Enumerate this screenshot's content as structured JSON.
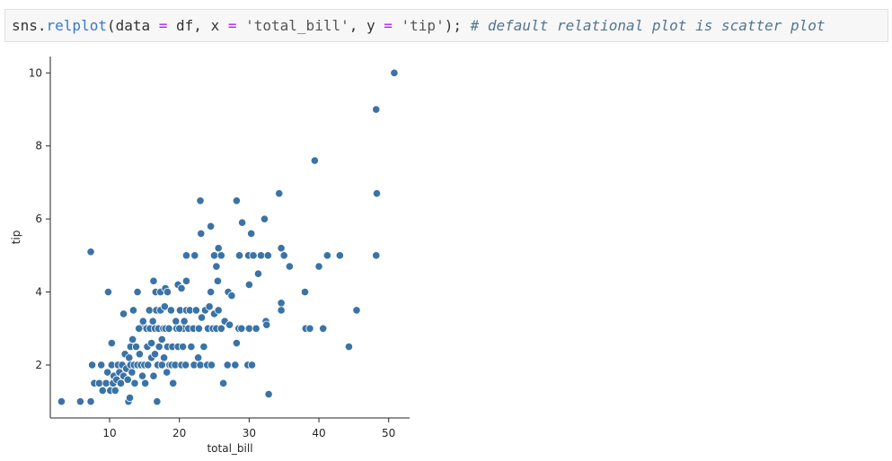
{
  "code_cell": {
    "code": "sns.relplot(data = df, x = 'total_bill', y = 'tip'); # default relational plot is scatter plot",
    "tokens": [
      {
        "text": "sns.",
        "cls": "tk-plain"
      },
      {
        "text": "relplot",
        "cls": "tk-fn"
      },
      {
        "text": "(data ",
        "cls": "tk-plain"
      },
      {
        "text": "=",
        "cls": "tk-op"
      },
      {
        "text": " df, x ",
        "cls": "tk-plain"
      },
      {
        "text": "=",
        "cls": "tk-op"
      },
      {
        "text": " ",
        "cls": "tk-plain"
      },
      {
        "text": "'total_bill'",
        "cls": "tk-str"
      },
      {
        "text": ", y ",
        "cls": "tk-plain"
      },
      {
        "text": "=",
        "cls": "tk-op"
      },
      {
        "text": " ",
        "cls": "tk-plain"
      },
      {
        "text": "'tip'",
        "cls": "tk-str"
      },
      {
        "text": "); ",
        "cls": "tk-plain"
      },
      {
        "text": "# default relational plot is scatter plot",
        "cls": "tk-cm"
      }
    ]
  },
  "chart_data": {
    "type": "scatter",
    "title": "",
    "xlabel": "total_bill",
    "ylabel": "tip",
    "xlim": [
      1.5,
      53
    ],
    "ylim": [
      0.55,
      10.45
    ],
    "xticks": [
      10,
      20,
      30,
      40,
      50
    ],
    "yticks": [
      2,
      4,
      6,
      8,
      10
    ],
    "grid": false,
    "colors": {
      "marker": "#3a73a7",
      "marker_edge": "#ffffff",
      "axis": "#262626"
    },
    "points": [
      [
        3.1,
        1.0
      ],
      [
        5.8,
        1.0
      ],
      [
        7.3,
        1.0
      ],
      [
        16.8,
        1.0
      ],
      [
        12.7,
        1.0
      ],
      [
        12.9,
        1.1
      ],
      [
        7.3,
        5.1
      ],
      [
        9.8,
        4.0
      ],
      [
        10.3,
        2.6
      ],
      [
        12.0,
        3.4
      ],
      [
        13.4,
        3.5
      ],
      [
        14.0,
        4.0
      ],
      [
        14.8,
        3.1
      ],
      [
        16.3,
        4.3
      ],
      [
        16.6,
        4.0
      ],
      [
        17.3,
        4.0
      ],
      [
        18.0,
        4.1
      ],
      [
        18.3,
        4.0
      ],
      [
        19.5,
        3.2
      ],
      [
        19.8,
        4.2
      ],
      [
        20.3,
        4.1
      ],
      [
        20.6,
        3.0
      ],
      [
        21.0,
        4.3
      ],
      [
        21.0,
        5.0
      ],
      [
        22.2,
        5.0
      ],
      [
        23.0,
        6.5
      ],
      [
        23.1,
        5.6
      ],
      [
        24.5,
        5.8
      ],
      [
        25.3,
        4.7
      ],
      [
        25.0,
        5.0
      ],
      [
        25.6,
        5.2
      ],
      [
        26.0,
        5.0
      ],
      [
        24.5,
        4.0
      ],
      [
        25.5,
        4.3
      ],
      [
        26.5,
        3.2
      ],
      [
        27.0,
        4.0
      ],
      [
        28.2,
        6.5
      ],
      [
        28.6,
        5.0
      ],
      [
        29.0,
        5.9
      ],
      [
        29.9,
        5.0
      ],
      [
        30.3,
        5.6
      ],
      [
        30.6,
        5.0
      ],
      [
        30.0,
        4.2
      ],
      [
        31.3,
        4.5
      ],
      [
        31.7,
        5.0
      ],
      [
        32.2,
        6.0
      ],
      [
        32.7,
        5.0
      ],
      [
        32.4,
        3.2
      ],
      [
        32.8,
        1.2
      ],
      [
        34.3,
        6.7
      ],
      [
        34.6,
        5.2
      ],
      [
        35.0,
        5.0
      ],
      [
        35.8,
        4.7
      ],
      [
        34.6,
        3.7
      ],
      [
        34.6,
        3.5
      ],
      [
        38.0,
        4.0
      ],
      [
        38.1,
        3.0
      ],
      [
        38.7,
        3.0
      ],
      [
        39.4,
        7.6
      ],
      [
        40.0,
        4.7
      ],
      [
        40.6,
        3.0
      ],
      [
        41.2,
        5.0
      ],
      [
        43.0,
        5.0
      ],
      [
        44.3,
        2.5
      ],
      [
        45.4,
        3.5
      ],
      [
        48.2,
        9.0
      ],
      [
        48.3,
        6.7
      ],
      [
        48.2,
        5.0
      ],
      [
        50.8,
        10.0
      ],
      [
        7.5,
        2.0
      ],
      [
        7.8,
        1.5
      ],
      [
        8.5,
        1.5
      ],
      [
        8.8,
        2.0
      ],
      [
        9.0,
        1.3
      ],
      [
        9.5,
        1.5
      ],
      [
        9.7,
        1.8
      ],
      [
        10.1,
        1.3
      ],
      [
        10.3,
        2.0
      ],
      [
        10.5,
        1.5
      ],
      [
        10.6,
        1.7
      ],
      [
        10.8,
        1.3
      ],
      [
        11.0,
        1.6
      ],
      [
        11.2,
        2.0
      ],
      [
        11.4,
        1.8
      ],
      [
        11.6,
        1.5
      ],
      [
        11.8,
        2.0
      ],
      [
        12.0,
        1.7
      ],
      [
        12.2,
        2.3
      ],
      [
        12.4,
        1.9
      ],
      [
        12.6,
        1.6
      ],
      [
        12.8,
        2.2
      ],
      [
        13.0,
        2.5
      ],
      [
        13.0,
        2.0
      ],
      [
        13.2,
        1.8
      ],
      [
        13.3,
        2.7
      ],
      [
        13.5,
        2.0
      ],
      [
        13.6,
        1.5
      ],
      [
        13.8,
        2.5
      ],
      [
        14.0,
        2.0
      ],
      [
        14.2,
        3.0
      ],
      [
        14.3,
        2.3
      ],
      [
        14.5,
        2.0
      ],
      [
        14.7,
        1.7
      ],
      [
        14.8,
        3.2
      ],
      [
        15.0,
        2.0
      ],
      [
        15.1,
        1.5
      ],
      [
        15.3,
        3.0
      ],
      [
        15.4,
        2.5
      ],
      [
        15.5,
        2.0
      ],
      [
        15.7,
        3.5
      ],
      [
        15.8,
        3.0
      ],
      [
        16.0,
        2.2
      ],
      [
        16.0,
        2.6
      ],
      [
        16.2,
        3.2
      ],
      [
        16.3,
        1.7
      ],
      [
        16.5,
        2.3
      ],
      [
        16.5,
        3.0
      ],
      [
        16.7,
        3.5
      ],
      [
        16.9,
        2.0
      ],
      [
        17.0,
        3.0
      ],
      [
        17.1,
        2.5
      ],
      [
        17.3,
        3.5
      ],
      [
        17.5,
        2.0
      ],
      [
        17.5,
        2.7
      ],
      [
        17.7,
        3.0
      ],
      [
        17.8,
        2.2
      ],
      [
        17.9,
        3.6
      ],
      [
        18.0,
        3.0
      ],
      [
        18.2,
        1.8
      ],
      [
        18.3,
        2.5
      ],
      [
        18.5,
        3.0
      ],
      [
        18.6,
        2.0
      ],
      [
        18.8,
        3.5
      ],
      [
        18.9,
        2.0
      ],
      [
        19.0,
        2.5
      ],
      [
        19.1,
        1.5
      ],
      [
        19.4,
        2.0
      ],
      [
        19.6,
        3.0
      ],
      [
        19.8,
        2.5
      ],
      [
        20.0,
        3.0
      ],
      [
        20.1,
        3.5
      ],
      [
        20.3,
        2.0
      ],
      [
        20.5,
        2.5
      ],
      [
        20.7,
        3.2
      ],
      [
        20.9,
        2.0
      ],
      [
        21.0,
        3.5
      ],
      [
        21.3,
        3.0
      ],
      [
        21.5,
        3.5
      ],
      [
        21.7,
        2.5
      ],
      [
        22.0,
        3.0
      ],
      [
        22.1,
        2.0
      ],
      [
        22.4,
        3.5
      ],
      [
        22.7,
        2.2
      ],
      [
        22.8,
        3.0
      ],
      [
        23.0,
        2.0
      ],
      [
        23.2,
        3.3
      ],
      [
        23.5,
        2.5
      ],
      [
        23.7,
        3.5
      ],
      [
        24.0,
        2.0
      ],
      [
        24.1,
        3.0
      ],
      [
        24.3,
        3.6
      ],
      [
        24.6,
        2.0
      ],
      [
        24.8,
        3.0
      ],
      [
        25.0,
        3.4
      ],
      [
        25.3,
        3.0
      ],
      [
        25.6,
        3.5
      ],
      [
        26.0,
        3.0
      ],
      [
        26.3,
        1.5
      ],
      [
        26.9,
        2.0
      ],
      [
        27.2,
        3.1
      ],
      [
        27.5,
        3.9
      ],
      [
        28.0,
        2.0
      ],
      [
        28.2,
        2.6
      ],
      [
        28.5,
        3.0
      ],
      [
        28.9,
        3.0
      ],
      [
        29.8,
        2.0
      ],
      [
        30.0,
        3.0
      ],
      [
        30.4,
        2.0
      ],
      [
        31.0,
        3.0
      ],
      [
        32.5,
        3.1
      ]
    ]
  }
}
